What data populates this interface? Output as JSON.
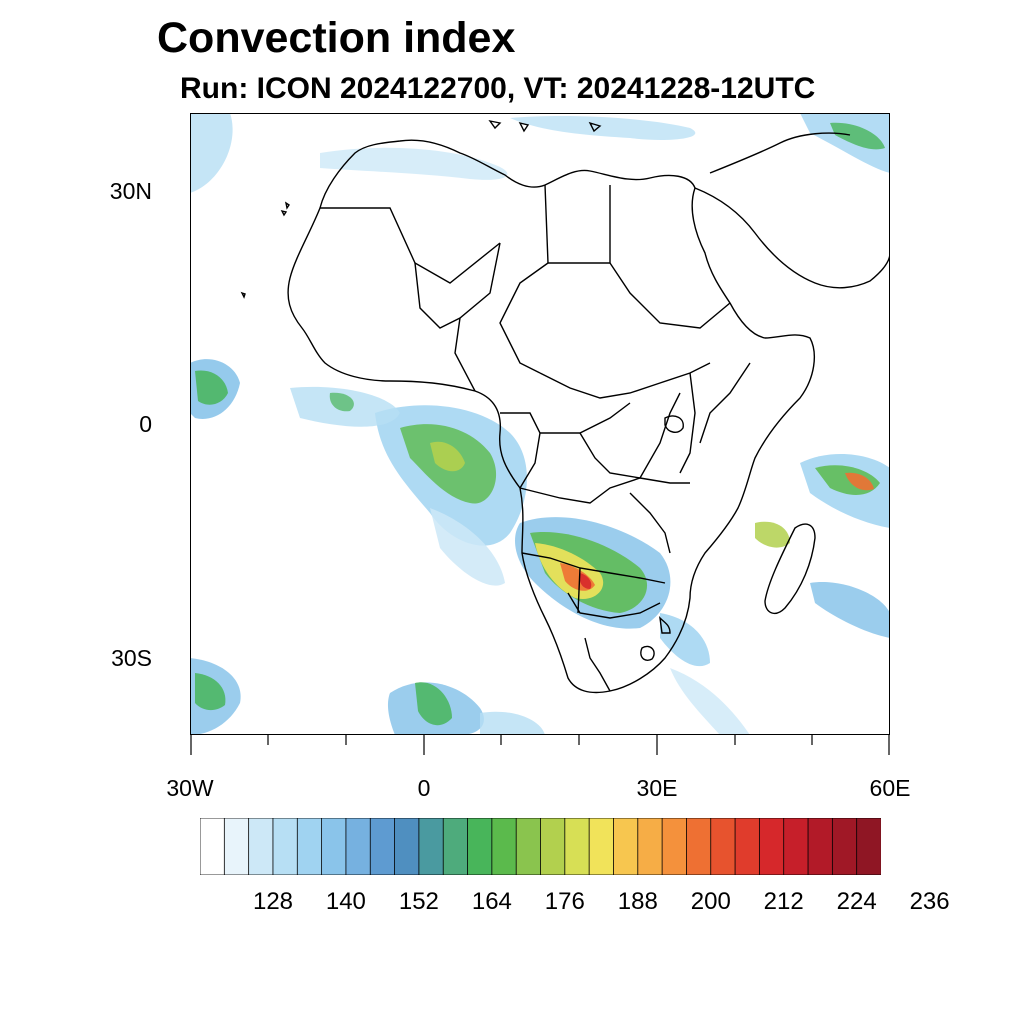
{
  "title": "Convection index",
  "subtitle": "Run: ICON 2024122700,  VT: 20241228-12UTC",
  "map": {
    "lat_labels": [
      "30N",
      "0",
      "30S"
    ],
    "lon_labels": [
      "30W",
      "0",
      "30E",
      "60E"
    ],
    "extent": {
      "lon": [
        -30,
        60
      ],
      "lat": [
        -40,
        40
      ]
    }
  },
  "colorbar": {
    "labels": [
      "128",
      "140",
      "152",
      "164",
      "176",
      "188",
      "200",
      "212",
      "224",
      "236"
    ],
    "colors": [
      "#ffffff",
      "#e8f4fb",
      "#cde8f7",
      "#b7dff4",
      "#a0d3f1",
      "#8ac4ea",
      "#76b1e0",
      "#5e9bd1",
      "#4f8fc0",
      "#4a9aa0",
      "#4eab7c",
      "#48b55a",
      "#5bba4c",
      "#8ac44e",
      "#b2d04e",
      "#d7df55",
      "#f1e35a",
      "#f7c64f",
      "#f6ad46",
      "#f4913c",
      "#ee7033",
      "#e7532e",
      "#e03c2c",
      "#d6282b",
      "#c61f2a",
      "#b21a28",
      "#a01826",
      "#8f1624"
    ]
  }
}
